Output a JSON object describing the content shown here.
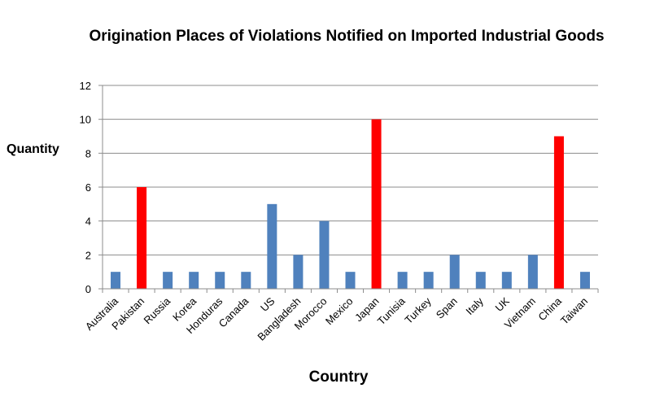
{
  "chart_data": {
    "type": "bar",
    "title": "Origination Places of Violations Notified on Imported Industrial Goods",
    "xlabel": "Country",
    "ylabel": "Quantity",
    "ylim": [
      0,
      12
    ],
    "yticks": [
      0,
      2,
      4,
      6,
      8,
      10,
      12
    ],
    "grid": true,
    "categories": [
      "Australia",
      "Pakistan",
      "Russia",
      "Korea",
      "Honduras",
      "Canada",
      "US",
      "Bangladesh",
      "Morocco",
      "Mexico",
      "Japan",
      "Tunisia",
      "Turkey",
      "Span",
      "Italy",
      "UK",
      "Vietnam",
      "China",
      "Taiwan"
    ],
    "values": [
      1,
      6,
      1,
      1,
      1,
      1,
      5,
      2,
      4,
      1,
      10,
      1,
      1,
      2,
      1,
      1,
      2,
      9,
      1
    ],
    "highlighted": [
      "Pakistan",
      "Japan",
      "China"
    ],
    "colors": {
      "default": "#4f81bd",
      "highlight": "#ff0000",
      "grid": "#8c8c8c"
    }
  }
}
